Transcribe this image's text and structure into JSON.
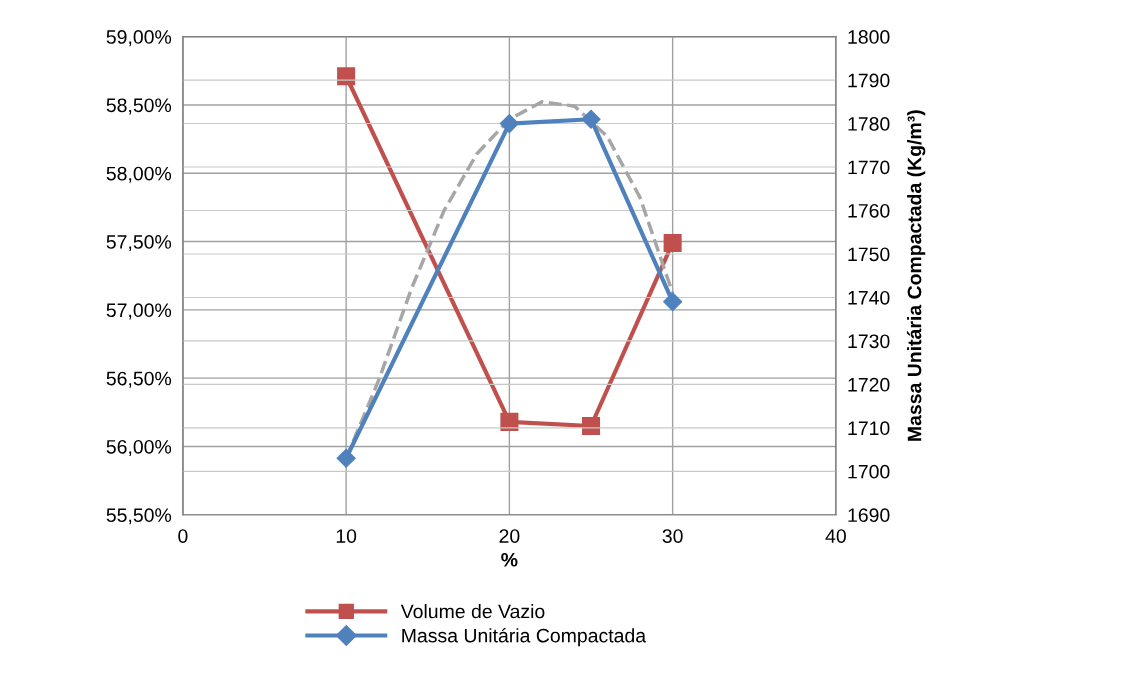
{
  "chart_data": {
    "type": "line",
    "xlabel": "%",
    "y2label": "Massa Unitária Compactada (Kg/m³)",
    "x": [
      10,
      20,
      25,
      30
    ],
    "series": [
      {
        "name": "Volume de Vazio",
        "color": "#c0504d",
        "values": [
          58.71,
          56.18,
          56.15,
          57.49
        ],
        "marker": "square"
      },
      {
        "name": "Massa Unitária Compactada",
        "color": "#4f81bd",
        "values": [
          1703,
          1780,
          1781,
          1739
        ],
        "axis": "y2",
        "marker": "diamond"
      },
      {
        "color": "#a6a6a6",
        "x": [
          10,
          12,
          14,
          16,
          18,
          20,
          22,
          24,
          26,
          28,
          30
        ],
        "values": [
          1703,
          1721,
          1742,
          1760,
          1773,
          1781,
          1785,
          1784,
          1777,
          1763,
          1741
        ],
        "axis": "y2",
        "marker": "none",
        "line_style": "dashed"
      }
    ],
    "xlim": [
      0,
      40
    ],
    "xticks": [
      0,
      10,
      20,
      30,
      40
    ],
    "ylim": [
      55.5,
      59
    ],
    "yticks": [
      {
        "value": 55.5,
        "label": "55,50%"
      },
      {
        "value": 56,
        "label": "56,00%"
      },
      {
        "value": 56.5,
        "label": "56,50%"
      },
      {
        "value": 57,
        "label": "57,00%"
      },
      {
        "value": 57.5,
        "label": "57,50%"
      },
      {
        "value": 58,
        "label": "58,00%"
      },
      {
        "value": 58.5,
        "label": "58,50%"
      },
      {
        "value": 59,
        "label": "59,00%"
      }
    ],
    "y2lim": [
      1690,
      1800
    ],
    "y2ticks": [
      1690,
      1700,
      1710,
      1720,
      1730,
      1740,
      1750,
      1760,
      1770,
      1780,
      1790,
      1800
    ],
    "grid": true,
    "legend": "bottom",
    "line_style": "solid"
  }
}
